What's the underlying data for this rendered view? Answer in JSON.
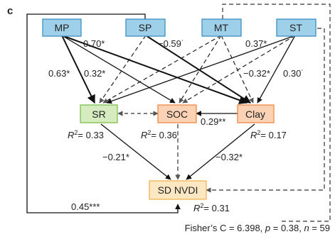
{
  "panel_label": "c",
  "nodes": {
    "MP": "MP",
    "SP": "SP",
    "MT": "MT",
    "ST": "ST",
    "SR": "SR",
    "SOC": "SOC",
    "Clay": "Clay",
    "SDNVDI": "SD NVDI"
  },
  "paths": {
    "MP_SR": "0.63*",
    "MP_SR_b": "0.32*",
    "MP_clay": "0.70*",
    "SP_clay": "−0.59˙",
    "ST_SR": "0.37*",
    "ST_SOC": "−0.32*",
    "ST_clay": "0.30˙",
    "Clay_SOC": "0.29**",
    "SR_SD": "−0.21*",
    "Clay_SD": "−0.32*",
    "MP_SD_long": "0.45***"
  },
  "r2": {
    "SR": "= 0.33",
    "SOC": "= 0.36",
    "Clay": "= 0.17",
    "SD": "= 0.31"
  },
  "footer": {
    "prefix": "Fisher’s C = 6.398, ",
    "p_sym": "p",
    "p_val": " = 0.38, ",
    "n_sym": "n",
    "n_val": " = 59"
  },
  "colors": {
    "blue_fill": "#9fd0ea",
    "blue_stroke": "#3f8fbf",
    "green_fill": "#d6ecc0",
    "green_stroke": "#7cbf4a",
    "orange_fill": "#fbd2b3",
    "orange_stroke": "#ee8a45",
    "yellow_fill": "#fbe7c2",
    "yellow_stroke": "#f3b354"
  }
}
